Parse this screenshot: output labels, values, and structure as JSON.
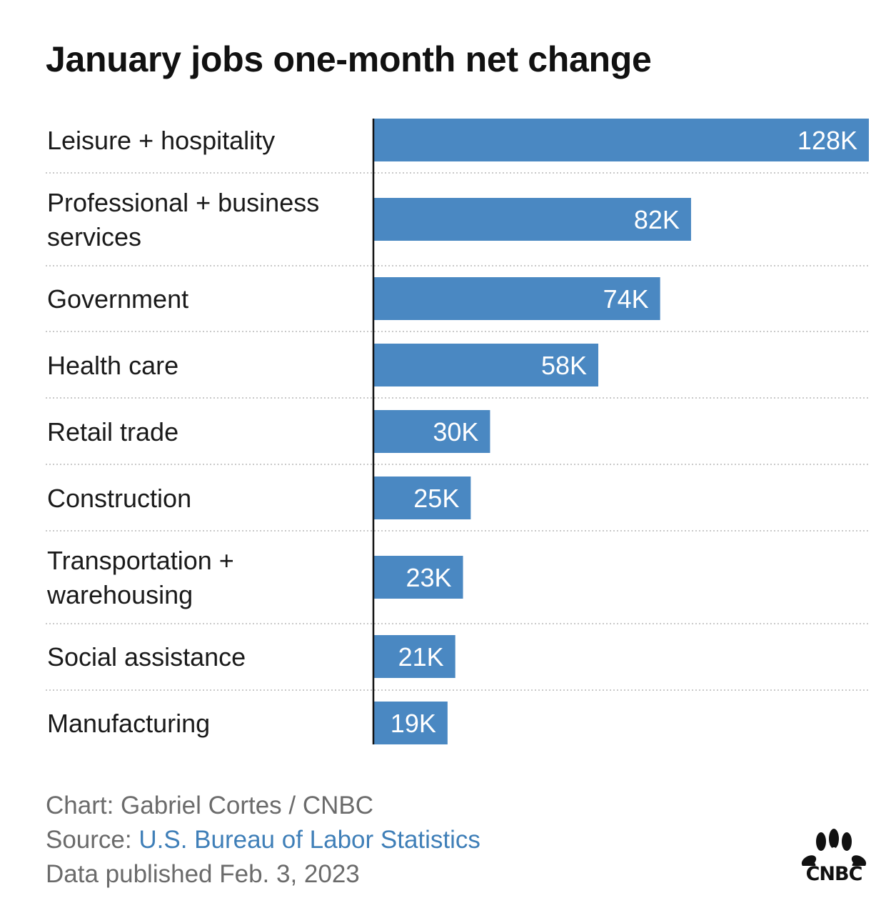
{
  "title": "January jobs one-month net change",
  "chart_data": {
    "type": "bar",
    "orientation": "horizontal",
    "title": "January jobs one-month net change",
    "categories": [
      [
        "Leisure + hospitality"
      ],
      [
        "Professional + business",
        "services"
      ],
      [
        "Government"
      ],
      [
        "Health care"
      ],
      [
        "Retail trade"
      ],
      [
        "Construction"
      ],
      [
        "Transportation +",
        "warehousing"
      ],
      [
        "Social assistance"
      ],
      [
        "Manufacturing"
      ]
    ],
    "values": [
      128,
      82,
      74,
      58,
      30,
      25,
      23,
      21,
      19
    ],
    "value_labels": [
      "128K",
      "82K",
      "74K",
      "58K",
      "30K",
      "25K",
      "23K",
      "21K",
      "19K"
    ],
    "unit": "K",
    "xlim": [
      0,
      128
    ],
    "bar_color": "#4a88c2",
    "grid": false,
    "separators": "dotted"
  },
  "footer": {
    "credit": "Chart: Gabriel Cortes / CNBC",
    "source_prefix": "Source: ",
    "source_name": "U.S. Bureau of Labor Statistics",
    "published": "Data published Feb. 3, 2023"
  },
  "logo": {
    "text": "CNBC",
    "icon": "peacock-icon"
  },
  "colors": {
    "bar": "#4a88c2",
    "title": "#111111",
    "footer": "#6b6b6b",
    "link": "#3f7fb8"
  }
}
